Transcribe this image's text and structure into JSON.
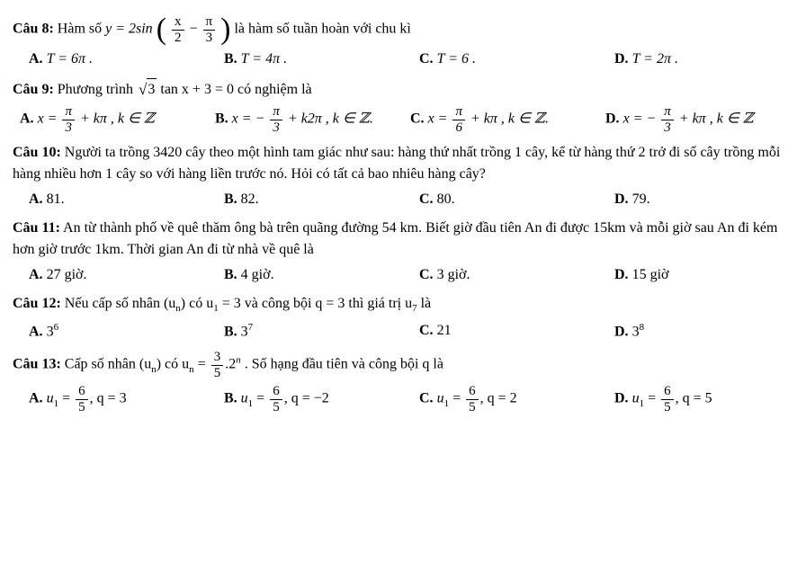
{
  "q8": {
    "label": "Câu 8:",
    "pre": "Hàm số ",
    "eq1": "y = 2sin",
    "argA": "x",
    "argB": "2",
    "argC": "π",
    "argD": "3",
    "post": " là hàm số tuần hoàn với chu kì",
    "A": "T = 6π .",
    "B": "T = 4π .",
    "C": "T = 6 .",
    "D": "T = 2π ."
  },
  "q9": {
    "label": "Câu 9:",
    "text": "Phương trình ",
    "rad": "3",
    "eq": " tan x + 3 = 0 có nghiệm là",
    "A_pre": "x = ",
    "A_num": "π",
    "A_den": "3",
    "A_post": " + kπ , k ∈ ",
    "B_pre": "x = − ",
    "B_num": "π",
    "B_den": "3",
    "B_post": " + k2π , k ∈ ",
    "B_dot": ".",
    "C_pre": "x = ",
    "C_num": "π",
    "C_den": "6",
    "C_post": " + kπ , k ∈ ",
    "C_dot": ".",
    "D_pre": "x = − ",
    "D_num": "π",
    "D_den": "3",
    "D_post": " + kπ , k ∈ ",
    "Z": "ℤ"
  },
  "q10": {
    "label": "Câu 10:",
    "text": "Người ta trồng 3420 cây theo một hình tam giác như sau: hàng thứ nhất trồng 1 cây, kể từ hàng thứ 2 trở đi số cây trồng mỗi hàng nhiều hơn 1 cây so với hàng liền trước nó. Hỏi có tất cả bao nhiêu hàng cây?",
    "A": "81.",
    "B": "82.",
    "C": "80.",
    "D": "79."
  },
  "q11": {
    "label": "Câu 11:",
    "text": "An từ thành phố về quê thăm ông bà trên quãng đường 54 km. Biết giờ đầu tiên An đi được 15km và mỗi giờ sau An đi kém hơn giờ trước 1km. Thời gian An đi từ nhà về quê là",
    "A": "27 giờ.",
    "B": "4 giờ.",
    "C": "3 giờ.",
    "D": "15 giờ"
  },
  "q12": {
    "label": "Câu 12:",
    "pre": "Nếu cấp số nhân (u",
    "sub_n": "n",
    "mid": ") có u",
    "sub1": "1",
    "mid2": " = 3 và công bội q = 3 thì giá trị u",
    "sub7": "7",
    "post": " là",
    "A": "3",
    "Ae": "6",
    "B": "3",
    "Be": "7",
    "C": "21",
    "D": "3",
    "De": "8"
  },
  "q13": {
    "label": "Câu 13:",
    "pre": "Cấp số nhân (u",
    "sub_n": "n",
    "mid": ") có u",
    "sub_n2": "n",
    "eq": " = ",
    "num": "3",
    "den": "5",
    "post1": ".2",
    "exp_n": "n",
    "post2": " . Số hạng đầu tiên và công bội q là",
    "A_pre": "u",
    "A_sub": "1",
    "A_eq": " = ",
    "A_num": "6",
    "A_den": "5",
    "A_post": ", q = 3",
    "B_pre": "u",
    "B_sub": "1",
    "B_eq": " = ",
    "B_num": "6",
    "B_den": "5",
    "B_post": ", q = −2",
    "C_pre": "u",
    "C_sub": "1",
    "C_eq": " = ",
    "C_num": "6",
    "C_den": "5",
    "C_post": ", q = 2",
    "D_pre": "u",
    "D_sub": "1",
    "D_eq": " = ",
    "D_num": "6",
    "D_den": "5",
    "D_post": ", q = 5"
  },
  "lbl": {
    "A": "A.",
    "B": "B.",
    "C": "C.",
    "D": "D."
  }
}
